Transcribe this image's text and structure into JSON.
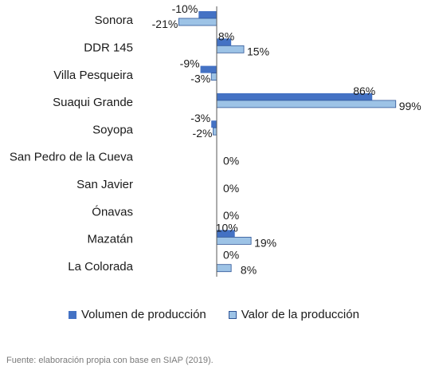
{
  "chart_data": {
    "type": "bar",
    "orientation": "horizontal",
    "categories": [
      "Sonora",
      "DDR 145",
      "Villa Pesqueira",
      "Suaqui Grande",
      "Soyopa",
      "San Pedro de la Cueva",
      "San Javier",
      "Ónavas",
      "Mazatán",
      "La Colorada"
    ],
    "series": [
      {
        "name": "Volumen de producción",
        "values": [
          -10,
          8,
          -9,
          86,
          -3,
          0,
          0,
          0,
          10,
          0
        ],
        "labels": [
          "-10%",
          "8%",
          "-9%",
          "86%",
          "-3%",
          "",
          "",
          "",
          "10%",
          "0%"
        ],
        "color": "#4472c4"
      },
      {
        "name": "Valor de la producción",
        "values": [
          -21,
          15,
          -3,
          99,
          -2,
          0,
          0,
          0,
          19,
          8
        ],
        "labels": [
          "-21%",
          "15%",
          "-3%",
          "99%",
          "-2%",
          "0%",
          "0%",
          "0%",
          "19%",
          "8%"
        ],
        "color": "#9dc3e6"
      }
    ],
    "xlim": [
      -21,
      99
    ],
    "legend_position": "bottom"
  },
  "source_text": "Fuente: elaboración propia con base en SIAP (2019)."
}
